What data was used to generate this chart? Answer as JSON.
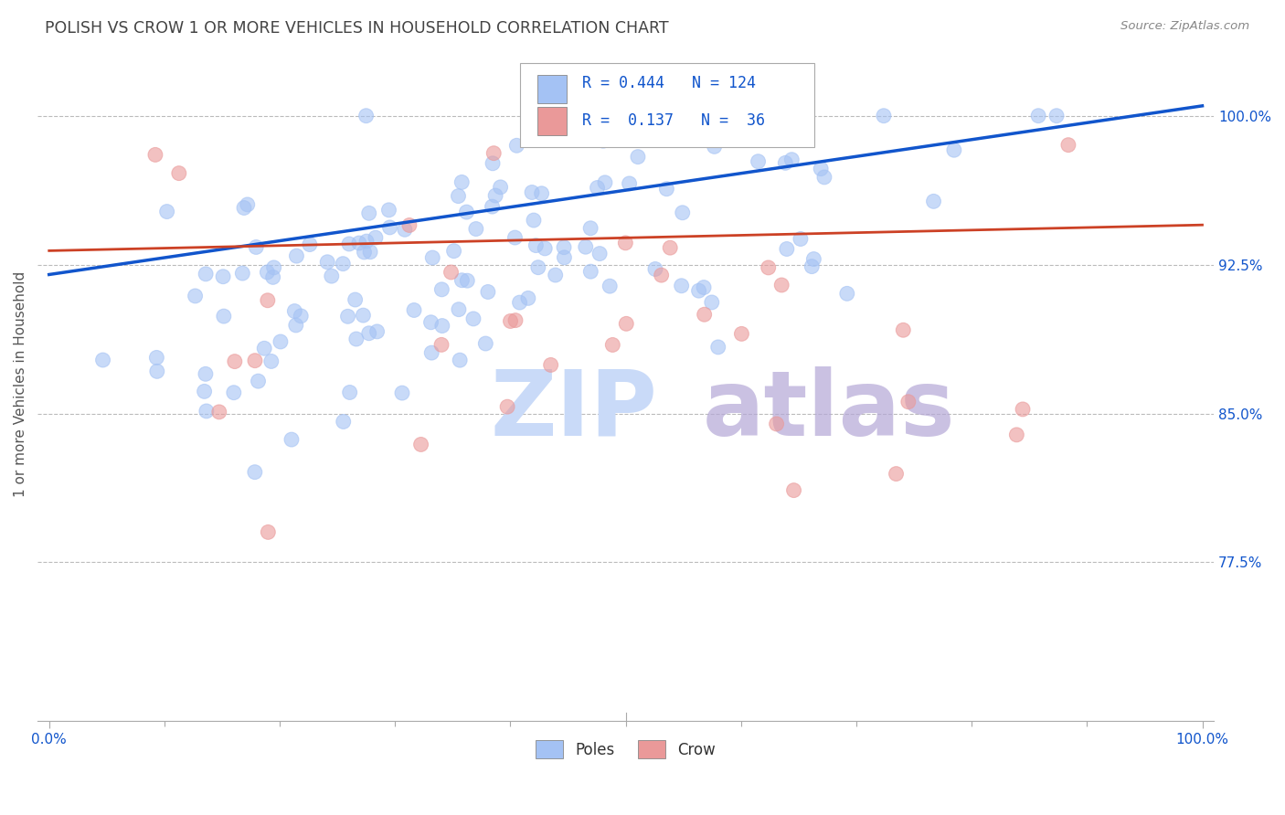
{
  "title": "POLISH VS CROW 1 OR MORE VEHICLES IN HOUSEHOLD CORRELATION CHART",
  "source": "Source: ZipAtlas.com",
  "ylabel": "1 or more Vehicles in Household",
  "ytick_labels": [
    "100.0%",
    "92.5%",
    "85.0%",
    "77.5%"
  ],
  "ytick_values": [
    1.0,
    0.925,
    0.85,
    0.775
  ],
  "xlim": [
    0.0,
    1.0
  ],
  "ylim": [
    0.695,
    1.035
  ],
  "legend_blue_label": "Poles",
  "legend_pink_label": "Crow",
  "r_blue": 0.444,
  "n_blue": 124,
  "r_pink": 0.137,
  "n_pink": 36,
  "blue_color": "#a4c2f4",
  "pink_color": "#ea9999",
  "blue_line_color": "#1155cc",
  "pink_line_color": "#cc4125",
  "title_color": "#434343",
  "axis_label_color": "#1155cc",
  "watermark_zip_color": "#c9daf8",
  "watermark_atlas_color": "#b4a7d6"
}
